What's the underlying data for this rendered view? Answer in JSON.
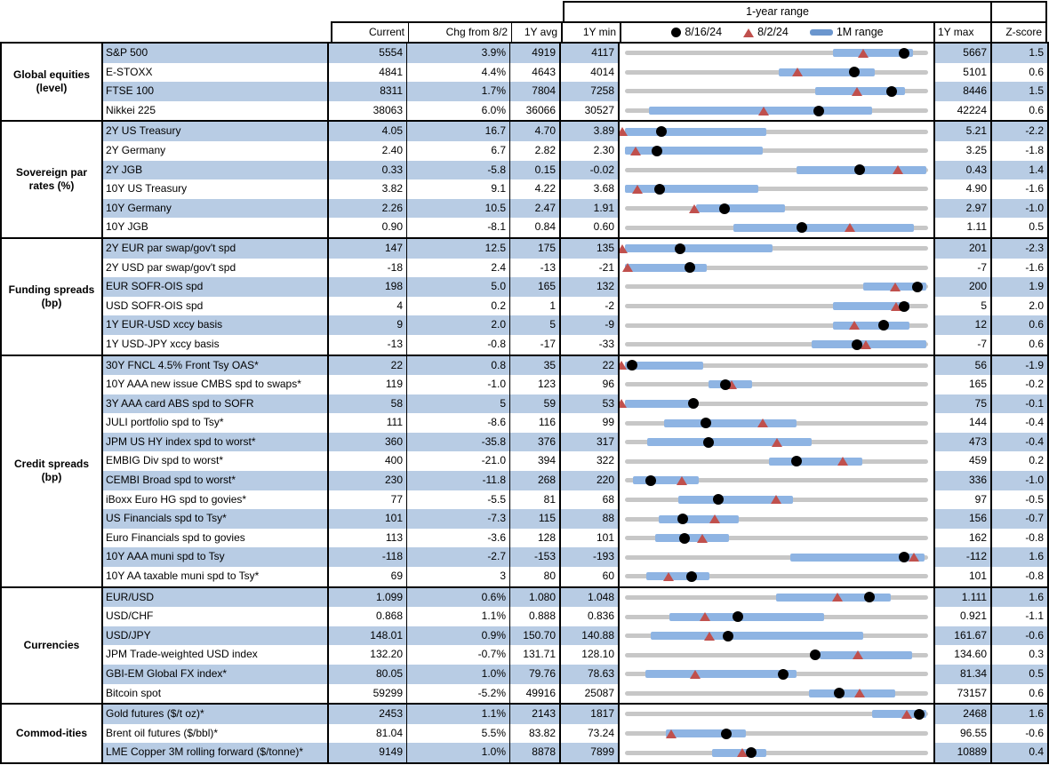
{
  "header": {
    "range_title": "1-year range",
    "columns": {
      "current": "Current",
      "chg": "Chg from 8/2",
      "avg": "1Y avg",
      "min": "1Y min",
      "max": "1Y max",
      "z": "Z-score"
    },
    "legend_labels": [
      "8/16/24",
      "8/2/24",
      "1M range"
    ]
  },
  "colors": {
    "stripe_blue": "#B8CCE4",
    "bar_blue": "#8EB4E3",
    "legend_bar_blue": "#6B96CE",
    "triangle_red": "#C0504D",
    "track_gray": "#C7C7C7",
    "dot_black": "#000000"
  },
  "chart_data": {
    "type": "table",
    "description": "Market monitor table; each row has a normalized 1-year range strip (gray = 1Y min..max, blue = 1M range, black dot = 8/16/24 level, red triangle = 8/2/24 level). Marker and bar positions are fractions of the 1Y min..max span.",
    "groups": [
      {
        "label": "Global equities (level)",
        "rows": [
          {
            "name": "S&P 500",
            "current": "5554",
            "chg": "3.9%",
            "avg": "4919",
            "min": "4117",
            "max": "5667",
            "z": "1.5",
            "dot": 0.927,
            "tri": 0.792,
            "bar": [
              0.69,
              0.955
            ]
          },
          {
            "name": "E-STOXX",
            "current": "4841",
            "chg": "4.4%",
            "avg": "4643",
            "min": "4014",
            "max": "5101",
            "z": "0.6",
            "dot": 0.761,
            "tri": 0.573,
            "bar": [
              0.51,
              0.83
            ]
          },
          {
            "name": "FTSE 100",
            "current": "8311",
            "chg": "1.7%",
            "avg": "7804",
            "min": "7258",
            "max": "8446",
            "z": "1.5",
            "dot": 0.886,
            "tri": 0.769,
            "bar": [
              0.63,
              0.93
            ]
          },
          {
            "name": "Nikkei 225",
            "current": "38063",
            "chg": "6.0%",
            "avg": "36066",
            "min": "30527",
            "max": "42224",
            "z": "0.6",
            "dot": 0.644,
            "tri": 0.46,
            "bar": [
              0.08,
              0.82
            ]
          }
        ]
      },
      {
        "label": "Sovereign par rates (%)",
        "rows": [
          {
            "name": "2Y US Treasury",
            "current": "4.05",
            "chg": "16.7",
            "avg": "4.70",
            "min": "3.89",
            "max": "5.21",
            "z": "-2.2",
            "dot": 0.121,
            "tri": -0.01,
            "bar": [
              0.0,
              0.47
            ]
          },
          {
            "name": "2Y Germany",
            "current": "2.40",
            "chg": "6.7",
            "avg": "2.82",
            "min": "2.30",
            "max": "3.25",
            "z": "-1.8",
            "dot": 0.105,
            "tri": 0.034,
            "bar": [
              0.0,
              0.457
            ]
          },
          {
            "name": "2Y JGB",
            "current": "0.33",
            "chg": "-5.8",
            "avg": "0.15",
            "min": "-0.02",
            "max": "0.43",
            "z": "1.4",
            "dot": 0.778,
            "tri": 0.907,
            "bar": [
              0.569,
              1.0
            ]
          },
          {
            "name": "10Y US Treasury",
            "current": "3.82",
            "chg": "9.1",
            "avg": "4.22",
            "min": "3.68",
            "max": "4.90",
            "z": "-1.6",
            "dot": 0.115,
            "tri": 0.04,
            "bar": [
              0.0,
              0.442
            ]
          },
          {
            "name": "10Y Germany",
            "current": "2.26",
            "chg": "10.5",
            "avg": "2.47",
            "min": "1.91",
            "max": "2.97",
            "z": "-1.0",
            "dot": 0.33,
            "tri": 0.231,
            "bar": [
              0.235,
              0.532
            ]
          },
          {
            "name": "10Y JGB",
            "current": "0.90",
            "chg": "-8.1",
            "avg": "0.84",
            "min": "0.60",
            "max": "1.11",
            "z": "0.5",
            "dot": 0.588,
            "tri": 0.747,
            "bar": [
              0.36,
              0.96
            ]
          }
        ]
      },
      {
        "label": "Funding spreads (bp)",
        "rows": [
          {
            "name": "2Y EUR par swap/gov't spd",
            "current": "147",
            "chg": "12.5",
            "avg": "175",
            "min": "135",
            "max": "201",
            "z": "-2.3",
            "dot": 0.182,
            "tri": -0.01,
            "bar": [
              0.0,
              0.49
            ]
          },
          {
            "name": "2Y USD par swap/gov't spd",
            "current": "-18",
            "chg": "2.4",
            "avg": "-13",
            "min": "-21",
            "max": "-7",
            "z": "-1.6",
            "dot": 0.214,
            "tri": 0.01,
            "bar": [
              0.0,
              0.27
            ]
          },
          {
            "name": "EUR SOFR-OIS spd",
            "current": "198",
            "chg": "5.0",
            "avg": "165",
            "min": "132",
            "max": "200",
            "z": "1.9",
            "dot": 0.97,
            "tri": 0.897,
            "bar": [
              0.79,
              1.0
            ]
          },
          {
            "name": "USD SOFR-OIS spd",
            "current": "4",
            "chg": "0.2",
            "avg": "1",
            "min": "-2",
            "max": "5",
            "z": "2.0",
            "dot": 0.925,
            "tri": 0.9,
            "bar": [
              0.69,
              0.943
            ]
          },
          {
            "name": "1Y EUR-USD xccy basis",
            "current": "9",
            "chg": "2.0",
            "avg": "5",
            "min": "-9",
            "max": "12",
            "z": "0.6",
            "dot": 0.857,
            "tri": 0.762,
            "bar": [
              0.69,
              0.945
            ]
          },
          {
            "name": "1Y USD-JPY xccy basis",
            "current": "-13",
            "chg": "-0.8",
            "avg": "-17",
            "min": "-33",
            "max": "-7",
            "z": "0.6",
            "dot": 0.769,
            "tri": 0.8,
            "bar": [
              0.62,
              1.0
            ]
          }
        ]
      },
      {
        "label": "Credit spreads (bp)",
        "rows": [
          {
            "name": "30Y FNCL 4.5% Front Tsy OAS*",
            "current": "22",
            "chg": "0.8",
            "avg": "35",
            "min": "22",
            "max": "56",
            "z": "-1.9",
            "dot": 0.025,
            "tri": -0.013,
            "bar": [
              0.0,
              0.26
            ]
          },
          {
            "name": "10Y AAA new issue CMBS spd to swaps*",
            "current": "119",
            "chg": "-1.0",
            "avg": "123",
            "min": "96",
            "max": "165",
            "z": "-0.2",
            "dot": 0.333,
            "tri": 0.355,
            "bar": [
              0.277,
              0.422
            ]
          },
          {
            "name": "3Y AAA card ABS spd to SOFR",
            "current": "58",
            "chg": "5",
            "avg": "59",
            "min": "53",
            "max": "75",
            "z": "-0.1",
            "dot": 0.227,
            "tri": -0.013,
            "bar": [
              0.0,
              0.23
            ]
          },
          {
            "name": "JULI portfolio spd to Tsy*",
            "current": "111",
            "chg": "-8.6",
            "avg": "116",
            "min": "99",
            "max": "144",
            "z": "-0.4",
            "dot": 0.267,
            "tri": 0.458,
            "bar": [
              0.13,
              0.57
            ]
          },
          {
            "name": "JPM US HY index spd to worst*",
            "current": "360",
            "chg": "-35.8",
            "avg": "376",
            "min": "317",
            "max": "473",
            "z": "-0.4",
            "dot": 0.276,
            "tri": 0.505,
            "bar": [
              0.075,
              0.62
            ]
          },
          {
            "name": "EMBIG Div spd to worst*",
            "current": "400",
            "chg": "-21.0",
            "avg": "394",
            "min": "322",
            "max": "459",
            "z": "0.2",
            "dot": 0.569,
            "tri": 0.723,
            "bar": [
              0.477,
              0.788
            ]
          },
          {
            "name": "CEMBI Broad spd to worst*",
            "current": "230",
            "chg": "-11.8",
            "avg": "268",
            "min": "220",
            "max": "336",
            "z": "-1.0",
            "dot": 0.086,
            "tri": 0.188,
            "bar": [
              0.028,
              0.246
            ]
          },
          {
            "name": "iBoxx Euro HG spd to govies*",
            "current": "77",
            "chg": "-5.5",
            "avg": "81",
            "min": "68",
            "max": "97",
            "z": "-0.5",
            "dot": 0.31,
            "tri": 0.5,
            "bar": [
              0.178,
              0.557
            ]
          },
          {
            "name": "US Financials spd to Tsy*",
            "current": "101",
            "chg": "-7.3",
            "avg": "115",
            "min": "88",
            "max": "156",
            "z": "-0.7",
            "dot": 0.191,
            "tri": 0.298,
            "bar": [
              0.111,
              0.378
            ]
          },
          {
            "name": "Euro Financials spd to govies",
            "current": "113",
            "chg": "-3.6",
            "avg": "128",
            "min": "101",
            "max": "162",
            "z": "-0.8",
            "dot": 0.197,
            "tri": 0.256,
            "bar": [
              0.1,
              0.346
            ]
          },
          {
            "name": "10Y AAA muni spd to Tsy",
            "current": "-118",
            "chg": "-2.7",
            "avg": "-153",
            "min": "-193",
            "max": "-112",
            "z": "1.6",
            "dot": 0.926,
            "tri": 0.959,
            "bar": [
              0.55,
              0.994
            ]
          },
          {
            "name": "10Y AA taxable muni spd to Tsy*",
            "current": "69",
            "chg": "3",
            "avg": "80",
            "min": "60",
            "max": "101",
            "z": "-0.8",
            "dot": 0.22,
            "tri": 0.146,
            "bar": [
              0.07,
              0.28
            ]
          }
        ]
      },
      {
        "label": "Currencies",
        "rows": [
          {
            "name": "EUR/USD",
            "current": "1.099",
            "chg": "0.6%",
            "avg": "1.080",
            "min": "1.048",
            "max": "1.111",
            "z": "1.6",
            "dot": 0.81,
            "tri": 0.705,
            "bar": [
              0.5,
              0.883
            ]
          },
          {
            "name": "USD/CHF",
            "current": "0.868",
            "chg": "1.1%",
            "avg": "0.888",
            "min": "0.836",
            "max": "0.921",
            "z": "-1.1",
            "dot": 0.376,
            "tri": 0.266,
            "bar": [
              0.148,
              0.66
            ]
          },
          {
            "name": "USD/JPY",
            "current": "148.01",
            "chg": "0.9%",
            "avg": "150.70",
            "min": "140.88",
            "max": "161.67",
            "z": "-0.6",
            "dot": 0.343,
            "tri": 0.279,
            "bar": [
              0.085,
              0.792
            ]
          },
          {
            "name": "JPM Trade-weighted USD index",
            "current": "132.20",
            "chg": "-0.7%",
            "avg": "131.71",
            "min": "128.10",
            "max": "134.60",
            "z": "0.3",
            "dot": 0.631,
            "tri": 0.774,
            "bar": [
              0.647,
              0.954
            ]
          },
          {
            "name": "GBI-EM Global FX index*",
            "current": "80.05",
            "chg": "1.0%",
            "avg": "79.76",
            "min": "78.63",
            "max": "81.34",
            "z": "0.5",
            "dot": 0.524,
            "tri": 0.232,
            "bar": [
              0.068,
              0.57
            ]
          },
          {
            "name": "Bitcoin spot",
            "current": "59299",
            "chg": "-5.2%",
            "avg": "49916",
            "min": "25087",
            "max": "73157",
            "z": "0.6",
            "dot": 0.712,
            "tri": 0.779,
            "bar": [
              0.61,
              0.898
            ]
          }
        ]
      },
      {
        "label": "Commod-ities",
        "rows": [
          {
            "name": "Gold futures ($/t oz)*",
            "current": "2453",
            "chg": "1.1%",
            "avg": "2143",
            "min": "1817",
            "max": "2468",
            "z": "1.6",
            "dot": 0.977,
            "tri": 0.935,
            "bar": [
              0.82,
              1.0
            ]
          },
          {
            "name": "Brent oil futures ($/bbl)*",
            "current": "81.04",
            "chg": "5.5%",
            "avg": "83.82",
            "min": "73.24",
            "max": "96.55",
            "z": "-0.6",
            "dot": 0.335,
            "tri": 0.154,
            "bar": [
              0.135,
              0.4
            ]
          },
          {
            "name": "LME Copper 3M rolling forward ($/tonne)*",
            "current": "9149",
            "chg": "1.0%",
            "avg": "8878",
            "min": "7899",
            "max": "10889",
            "z": "0.4",
            "dot": 0.418,
            "tri": 0.388,
            "bar": [
              0.29,
              0.47
            ]
          }
        ]
      }
    ]
  }
}
